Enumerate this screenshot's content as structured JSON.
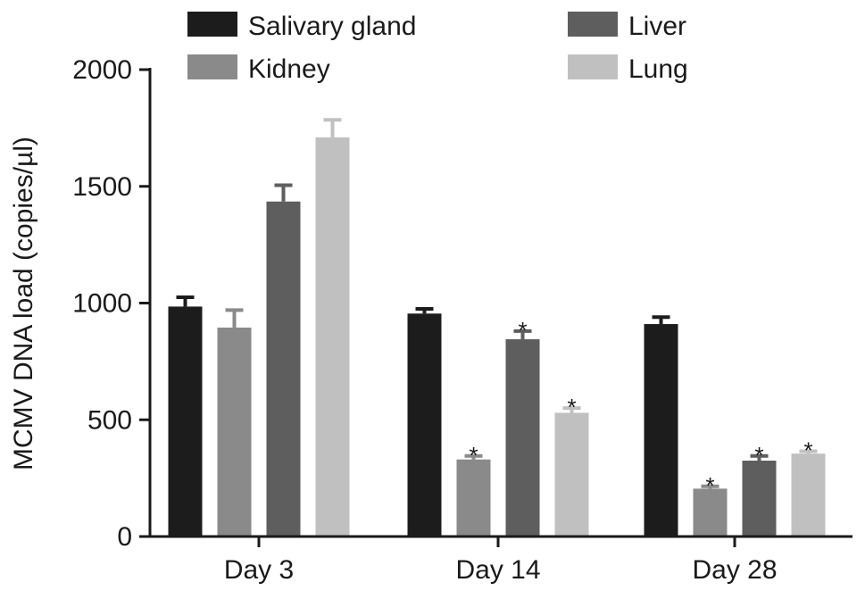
{
  "chart_data": {
    "type": "bar",
    "title": "",
    "xlabel": "",
    "ylabel": "MCMV DNA load (copies/µl)",
    "ylim": [
      0,
      2000
    ],
    "yticks": [
      0,
      500,
      1000,
      1500,
      2000
    ],
    "categories": [
      "Day 3",
      "Day 14",
      "Day 28"
    ],
    "grid": false,
    "legend_position": "top",
    "series": [
      {
        "name": "Salivary gland",
        "color": "#1c1c1c",
        "values": [
          985,
          955,
          910
        ],
        "errors": [
          40,
          20,
          30
        ],
        "significant": [
          false,
          false,
          false
        ]
      },
      {
        "name": "Kidney",
        "color": "#8a8a8a",
        "values": [
          895,
          330,
          205
        ],
        "errors": [
          75,
          15,
          10
        ],
        "significant": [
          false,
          true,
          true
        ]
      },
      {
        "name": "Liver",
        "color": "#5e5e5e",
        "values": [
          1435,
          845,
          325
        ],
        "errors": [
          70,
          35,
          20
        ],
        "significant": [
          false,
          true,
          true
        ]
      },
      {
        "name": "Lung",
        "color": "#c0c0c0",
        "values": [
          1710,
          530,
          355
        ],
        "errors": [
          75,
          20,
          10
        ],
        "significant": [
          false,
          true,
          true
        ]
      }
    ],
    "significance_marker": "*"
  }
}
